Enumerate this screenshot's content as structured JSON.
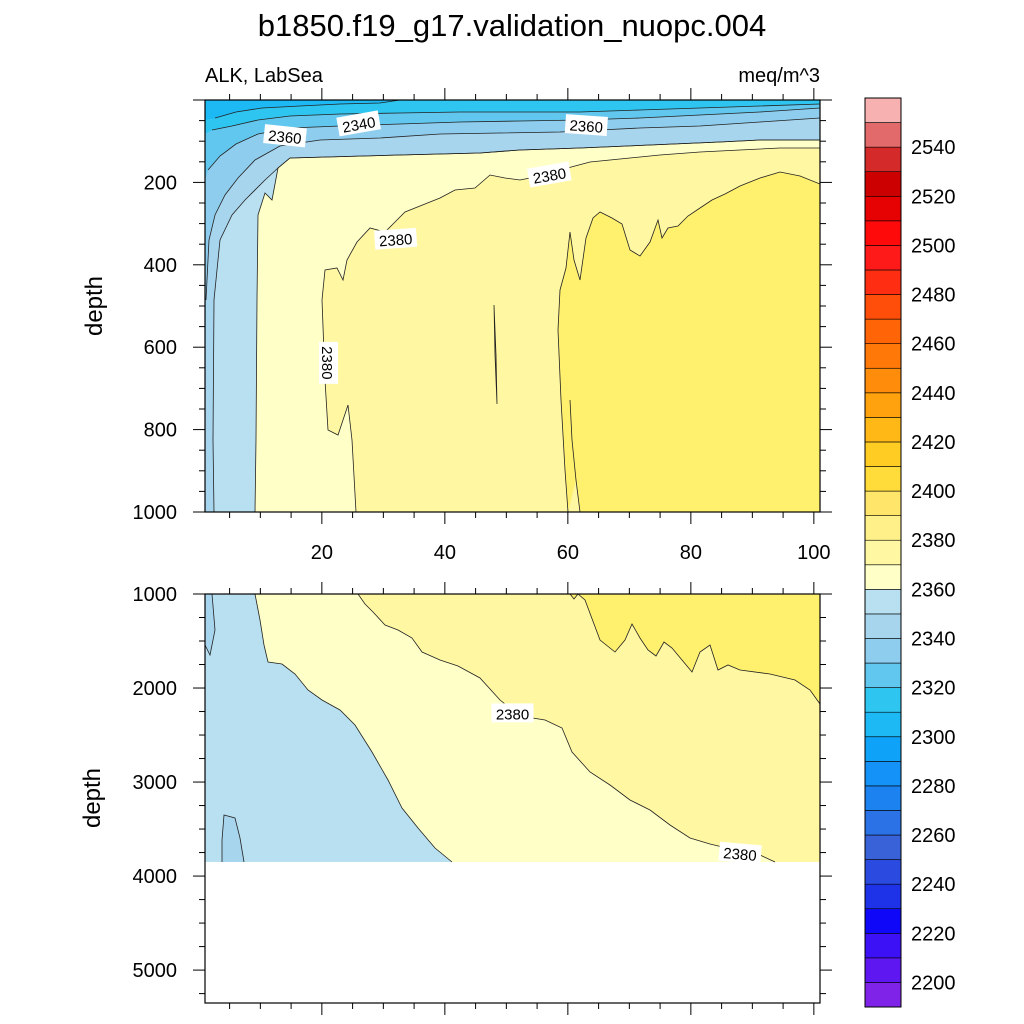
{
  "chart_data": {
    "type": "contour",
    "title": "b1850.f19_g17.validation_nuopc.004",
    "left_label": "ALK, LabSea",
    "right_label": "meq/m^3",
    "colorbar": {
      "ticks": [
        2200,
        2220,
        2240,
        2260,
        2280,
        2300,
        2320,
        2340,
        2360,
        2380,
        2400,
        2420,
        2440,
        2460,
        2480,
        2500,
        2520,
        2540
      ],
      "levels_min": 2190,
      "levels_max": 2560,
      "level_step": 10,
      "colors": [
        "#7f23e8",
        "#5f17f2",
        "#3c11f5",
        "#0f08f8",
        "#1e32e8",
        "#2b4be0",
        "#3a62d8",
        "#2a72e6",
        "#1c82f0",
        "#1592f7",
        "#0ea3f8",
        "#1db9f5",
        "#2ec6f0",
        "#62c7ef",
        "#8fcdee",
        "#a8d5ee",
        "#b9e0f0",
        "#ffffc8",
        "#fff7a2",
        "#fff08a",
        "#ffe66a",
        "#ffdc3a",
        "#ffcc24",
        "#ffb815",
        "#ffa20e",
        "#ff8c0a",
        "#ff7808",
        "#ff6407",
        "#ff4e0a",
        "#ff2e12",
        "#ff1a1a",
        "#ff0a0a",
        "#e60202",
        "#cc0000",
        "#d42a2a",
        "#e26a6a",
        "#f7b1b1"
      ]
    },
    "upper_panel": {
      "ylabel": "depth",
      "y_range": [
        1000,
        0
      ],
      "y_ticks": [
        200,
        400,
        600,
        800,
        1000
      ],
      "x_range": [
        1,
        101
      ],
      "x_ticks": [
        20,
        40,
        60,
        80,
        100
      ],
      "contour_labels": [
        {
          "text": "2360",
          "x": 14,
          "y": 88
        },
        {
          "text": "2340",
          "x": 26,
          "y": 58
        },
        {
          "text": "2360",
          "x": 63,
          "y": 62
        },
        {
          "text": "2380",
          "x": 57,
          "y": 182
        },
        {
          "text": "2380",
          "x": 32,
          "y": 338
        },
        {
          "text": "2380",
          "x": 21,
          "y": 638
        }
      ]
    },
    "lower_panel": {
      "ylabel": "depth",
      "y_range": [
        5350,
        1000
      ],
      "y_ticks": [
        1000,
        2000,
        3000,
        4000,
        5000
      ],
      "data_bottom_depth": 3860,
      "contour_labels": [
        {
          "text": "2380",
          "x": 51,
          "y": 2270
        },
        {
          "text": "2380",
          "x": 88,
          "y": 3760
        }
      ]
    }
  }
}
